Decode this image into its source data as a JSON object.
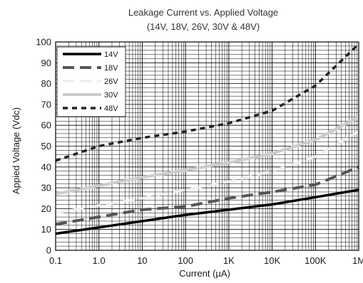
{
  "chart_data": {
    "type": "line",
    "title": "Leakage Current vs. Applied Voltage",
    "subtitle": "(14V, 18V, 26V, 30V & 48V)",
    "xlabel": "Current (µA)",
    "ylabel": "Appied Voltage (Vdc)",
    "x_scale": "log",
    "xlim": [
      0.1,
      1000000
    ],
    "ylim": [
      0,
      100
    ],
    "x_ticks": [
      0.1,
      1,
      10,
      100,
      1000,
      10000,
      100000,
      1000000
    ],
    "x_tick_labels": [
      "0.1",
      "1.0",
      "10",
      "100",
      "1K",
      "10K",
      "100K",
      "1M"
    ],
    "y_ticks": [
      0,
      10,
      20,
      30,
      40,
      50,
      60,
      70,
      80,
      90,
      100
    ],
    "y_tick_labels": [
      "0",
      "10",
      "20",
      "30",
      "40",
      "50",
      "60",
      "70",
      "80",
      "90",
      "100"
    ],
    "grid": true,
    "legend_position": "top-left",
    "series": [
      {
        "name": "14V",
        "color": "#000000",
        "dash": "solid",
        "x": [
          0.1,
          1,
          10,
          100,
          1000,
          10000,
          100000,
          1000000
        ],
        "y": [
          8,
          11,
          14,
          17,
          19.5,
          22,
          25.5,
          29
        ]
      },
      {
        "name": "18V",
        "color": "#555555",
        "dash": "long-dash",
        "x": [
          0.1,
          1,
          10,
          100,
          1000,
          10000,
          100000,
          1000000
        ],
        "y": [
          12.5,
          16,
          19.5,
          21,
          25,
          28,
          31.5,
          40
        ]
      },
      {
        "name": "26V",
        "color": "#eeeeee",
        "dash": "long-dash",
        "x": [
          0.1,
          1,
          10,
          100,
          1000,
          10000,
          100000,
          1000000
        ],
        "y": [
          18,
          21.5,
          25,
          29,
          33,
          38,
          45,
          57
        ]
      },
      {
        "name": "30V",
        "color": "#cccccc",
        "dash": "solid",
        "x": [
          0.1,
          1,
          10,
          100,
          1000,
          10000,
          100000,
          1000000
        ],
        "y": [
          27,
          31,
          35,
          38.5,
          42,
          46.5,
          53,
          64
        ]
      },
      {
        "name": "48V",
        "color": "#222222",
        "dash": "short-dash",
        "x": [
          0.1,
          1,
          10,
          100,
          1000,
          10000,
          100000,
          1000000
        ],
        "y": [
          43,
          50,
          54,
          57,
          61,
          67,
          79,
          99
        ]
      }
    ]
  }
}
